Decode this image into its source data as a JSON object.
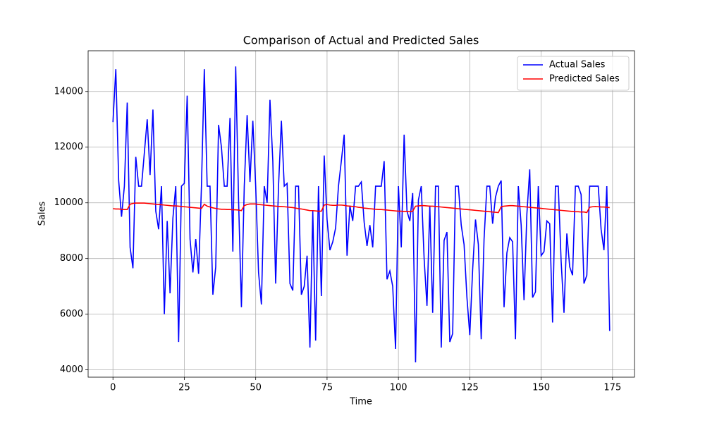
{
  "chart_data": {
    "type": "line",
    "title": "Comparison of Actual and Predicted Sales",
    "xlabel": "Time",
    "ylabel": "Sales",
    "x": [
      0,
      1,
      2,
      3,
      4,
      5,
      6,
      7,
      8,
      9,
      10,
      11,
      12,
      13,
      14,
      15,
      16,
      17,
      18,
      19,
      20,
      21,
      22,
      23,
      24,
      25,
      26,
      27,
      28,
      29,
      30,
      31,
      32,
      33,
      34,
      35,
      36,
      37,
      38,
      39,
      40,
      41,
      42,
      43,
      44,
      45,
      46,
      47,
      48,
      49,
      50,
      51,
      52,
      53,
      54,
      55,
      56,
      57,
      58,
      59,
      60,
      61,
      62,
      63,
      64,
      65,
      66,
      67,
      68,
      69,
      70,
      71,
      72,
      73,
      74,
      75,
      76,
      77,
      78,
      79,
      80,
      81,
      82,
      83,
      84,
      85,
      86,
      87,
      88,
      89,
      90,
      91,
      92,
      93,
      94,
      95,
      96,
      97,
      98,
      99,
      100,
      101,
      102,
      103,
      104,
      105,
      106,
      107,
      108,
      109,
      110,
      111,
      112,
      113,
      114,
      115,
      116,
      117,
      118,
      119,
      120,
      121,
      122,
      123,
      124,
      125,
      126,
      127,
      128,
      129,
      130,
      131,
      132,
      133,
      134,
      135,
      136,
      137,
      138,
      139,
      140,
      141,
      142,
      143,
      144,
      145,
      146,
      147,
      148,
      149,
      150,
      151,
      152,
      153,
      154,
      155,
      156,
      157,
      158,
      159,
      160,
      161,
      162,
      163,
      164,
      165,
      166,
      167,
      168,
      169,
      170,
      171,
      172,
      173,
      174
    ],
    "series": [
      {
        "name": "Actual Sales",
        "color": "#0000ff",
        "values": [
          12900,
          14800,
          10800,
          9500,
          10600,
          13600,
          8400,
          7650,
          11650,
          10600,
          10600,
          11800,
          13000,
          11000,
          13350,
          9700,
          9050,
          10600,
          6000,
          9350,
          6750,
          9450,
          10600,
          5000,
          10600,
          10700,
          13850,
          8700,
          7500,
          8700,
          7450,
          10600,
          14800,
          10600,
          10600,
          6700,
          7700,
          12800,
          12000,
          10600,
          10600,
          13050,
          8250,
          14900,
          10100,
          6250,
          10600,
          13150,
          10750,
          12950,
          10600,
          7500,
          6350,
          10600,
          10000,
          13700,
          11500,
          7100,
          10600,
          12950,
          10600,
          10700,
          7100,
          6850,
          10600,
          10600,
          6700,
          7000,
          8100,
          4800,
          9700,
          5050,
          10600,
          6650,
          11700,
          9400,
          8300,
          8600,
          9100,
          10600,
          11500,
          12450,
          8100,
          9900,
          9350,
          10600,
          10600,
          10750,
          9300,
          8450,
          9200,
          8400,
          10600,
          10600,
          10600,
          11500,
          7250,
          7550,
          7000,
          4750,
          10600,
          8400,
          12450,
          9700,
          9350,
          10350,
          4270,
          10100,
          10600,
          8000,
          6300,
          9900,
          6050,
          10600,
          10600,
          4800,
          8650,
          8950,
          5000,
          5300,
          10600,
          10600,
          9200,
          8500,
          6600,
          5250,
          7600,
          9400,
          8500,
          5100,
          8700,
          10600,
          10600,
          9250,
          10200,
          10600,
          10800,
          6250,
          8200,
          8750,
          8600,
          5100,
          10600,
          9200,
          6500,
          9600,
          11200,
          6600,
          6800,
          10600,
          8100,
          8250,
          9350,
          9250,
          5700,
          10600,
          10600,
          7900,
          6050,
          8900,
          7700,
          7400,
          10600,
          10600,
          10300,
          7100,
          7400,
          10600,
          10600,
          10600,
          10600,
          9050,
          8300,
          10600,
          5400
        ]
      },
      {
        "name": "Predicted Sales",
        "color": "#ff0000",
        "values": [
          9790,
          9780,
          9780,
          9770,
          9760,
          9760,
          9950,
          9980,
          9990,
          9990,
          9990,
          9990,
          9980,
          9970,
          9960,
          9950,
          9940,
          9930,
          9920,
          9910,
          9900,
          9890,
          9890,
          9880,
          9870,
          9860,
          9850,
          9840,
          9830,
          9820,
          9810,
          9800,
          9950,
          9880,
          9850,
          9820,
          9800,
          9780,
          9770,
          9770,
          9760,
          9760,
          9750,
          9750,
          9740,
          9720,
          9900,
          9940,
          9960,
          9960,
          9960,
          9940,
          9930,
          9920,
          9910,
          9900,
          9890,
          9880,
          9870,
          9870,
          9860,
          9850,
          9840,
          9830,
          9810,
          9790,
          9780,
          9760,
          9740,
          9720,
          9720,
          9710,
          9700,
          9700,
          9920,
          9940,
          9920,
          9910,
          9910,
          9920,
          9920,
          9910,
          9890,
          9880,
          9870,
          9860,
          9840,
          9830,
          9810,
          9800,
          9790,
          9780,
          9770,
          9760,
          9760,
          9750,
          9740,
          9730,
          9720,
          9710,
          9700,
          9700,
          9690,
          9690,
          9680,
          9700,
          9880,
          9890,
          9900,
          9900,
          9890,
          9880,
          9880,
          9870,
          9860,
          9850,
          9840,
          9830,
          9820,
          9810,
          9800,
          9790,
          9780,
          9770,
          9760,
          9750,
          9740,
          9730,
          9720,
          9710,
          9700,
          9690,
          9680,
          9670,
          9660,
          9650,
          9860,
          9880,
          9890,
          9900,
          9900,
          9890,
          9880,
          9870,
          9860,
          9850,
          9840,
          9830,
          9820,
          9810,
          9800,
          9790,
          9780,
          9770,
          9760,
          9750,
          9740,
          9730,
          9720,
          9710,
          9700,
          9690,
          9680,
          9680,
          9670,
          9670,
          9650,
          9840,
          9860,
          9870,
          9860,
          9850,
          9850,
          9840,
          9830
        ]
      }
    ],
    "xlim": [
      -8.7,
      182.7
    ],
    "ylim": [
      3737,
      15463
    ],
    "xticks": [
      0,
      25,
      50,
      75,
      100,
      125,
      150,
      175
    ],
    "yticks": [
      4000,
      6000,
      8000,
      10000,
      12000,
      14000
    ],
    "grid": true,
    "legend": "upper right"
  }
}
